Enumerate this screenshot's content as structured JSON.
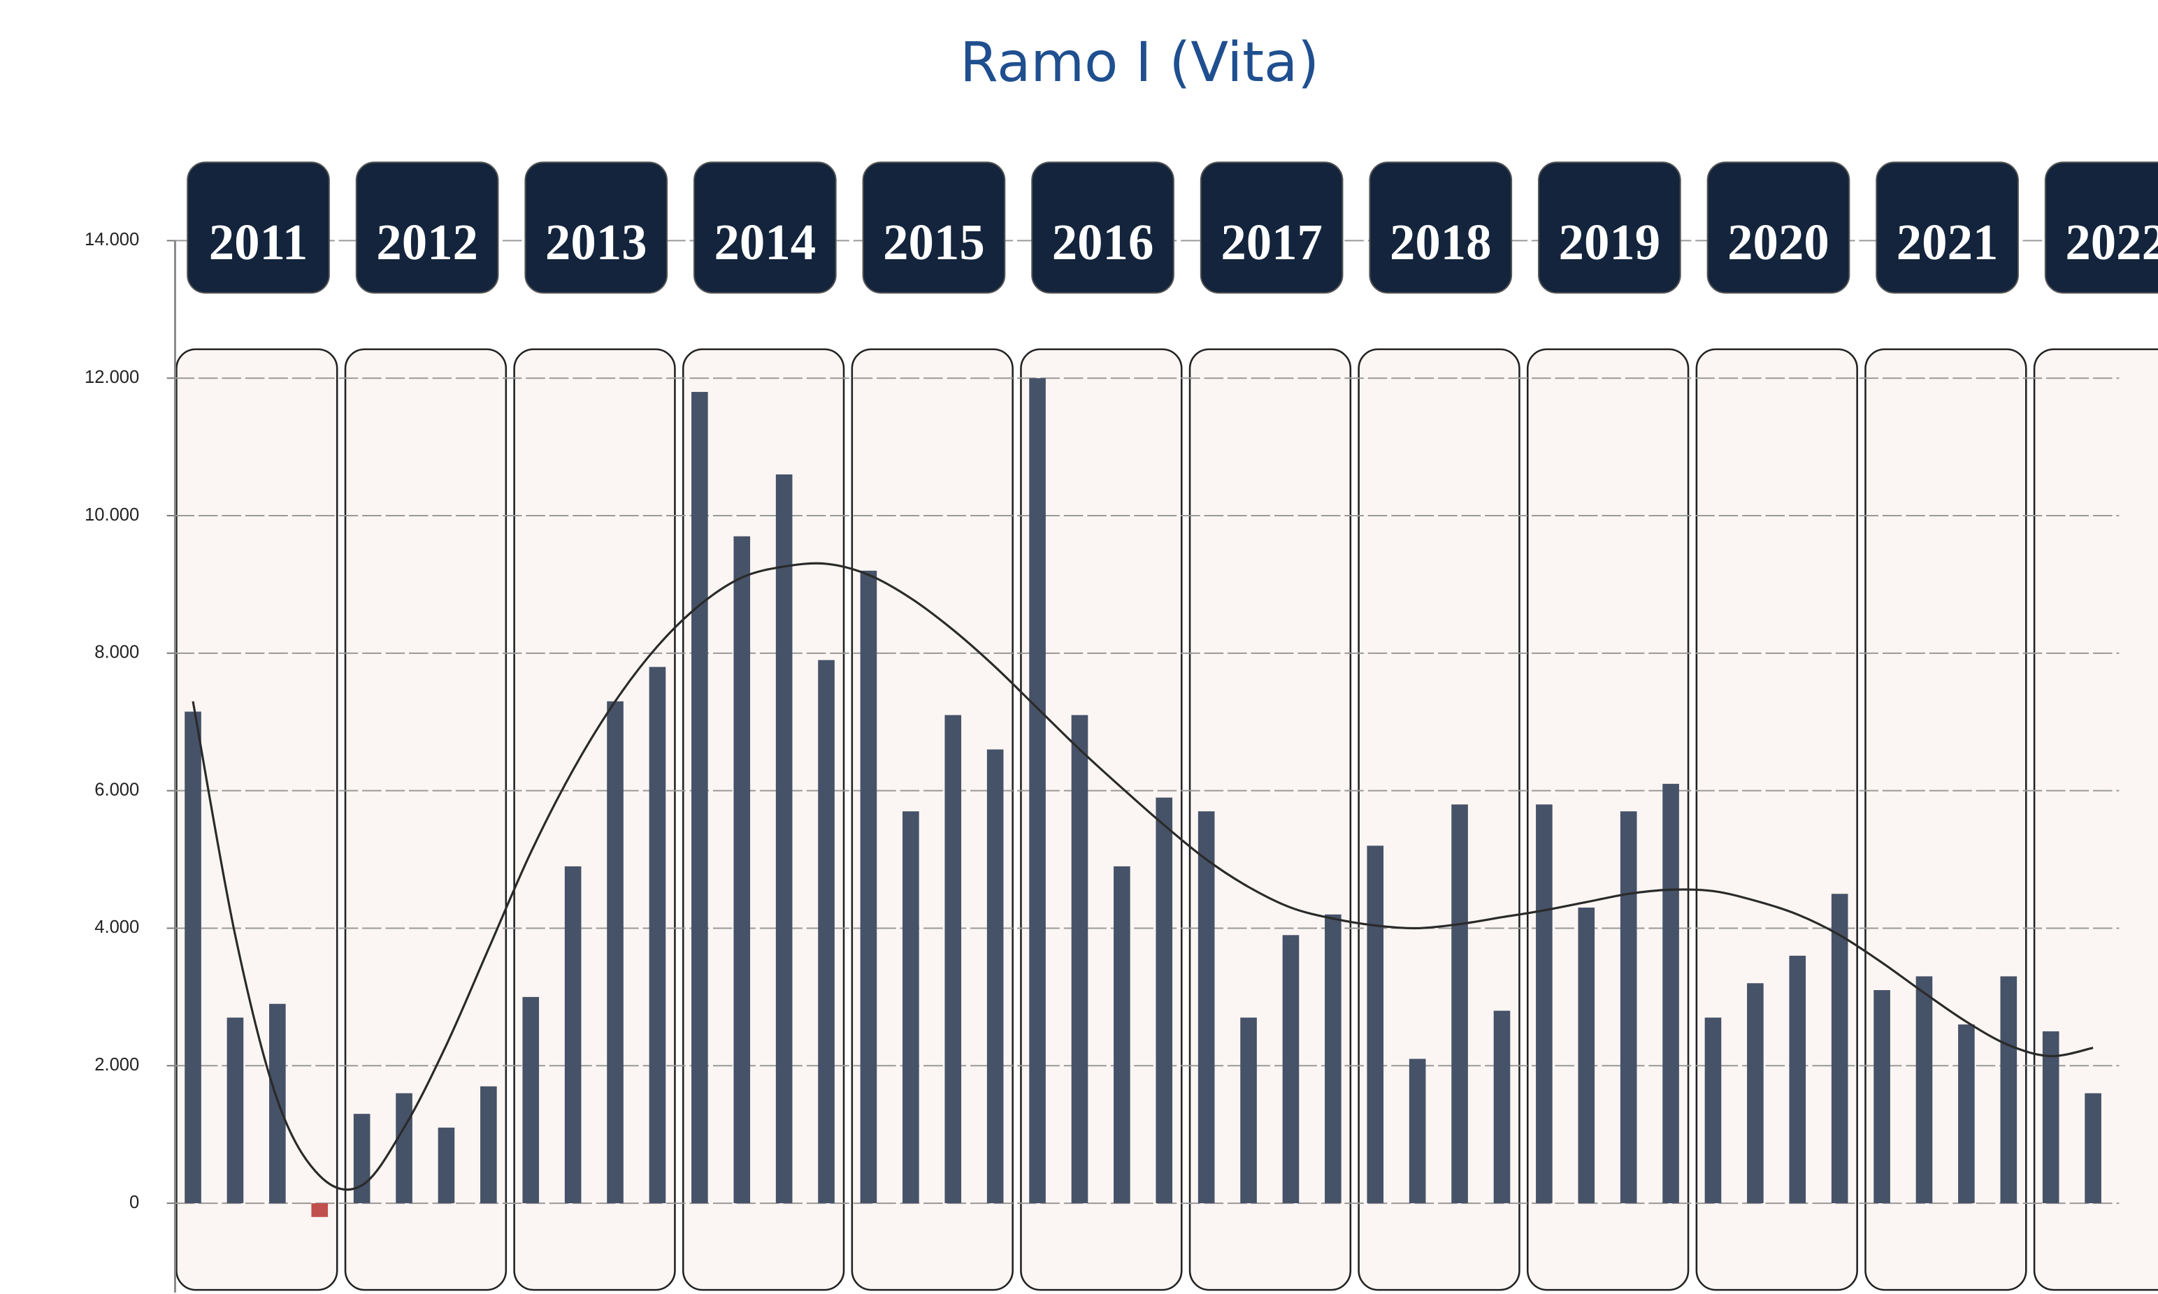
{
  "chart_data": {
    "type": "bar",
    "title": "Ramo I (Vita)",
    "years": [
      "2011",
      "2012",
      "2013",
      "2014",
      "2015",
      "2016",
      "2017",
      "2018",
      "2019",
      "2020",
      "2021",
      "2022"
    ],
    "categories": [
      null,
      null,
      null,
      null,
      null,
      null,
      null,
      null,
      null,
      null,
      null,
      null,
      null,
      null,
      null,
      null,
      null,
      null,
      null,
      null,
      null,
      null,
      null,
      null,
      null,
      null,
      null,
      null,
      null,
      null,
      null,
      null,
      null,
      null,
      null,
      null,
      null,
      null,
      null,
      null,
      null,
      null,
      null,
      null,
      null,
      null
    ],
    "series": [
      {
        "type": "bar",
        "color": "#465268",
        "negative_color": "#c0504d",
        "values": [
          7150,
          2700,
          2900,
          -200,
          1300,
          1600,
          1100,
          1700,
          3000,
          4900,
          7300,
          7800,
          11800,
          9700,
          10600,
          7900,
          9200,
          5700,
          7100,
          6600,
          12000,
          7100,
          4900,
          5900,
          5700,
          2700,
          3900,
          4200,
          5200,
          2100,
          5800,
          2800,
          5800,
          4300,
          5700,
          6100,
          2700,
          3200,
          3600,
          4500,
          3100,
          3300,
          2600,
          3300,
          2500,
          1600
        ]
      },
      {
        "type": "line",
        "color": "#2a2a2a",
        "values": [
          7300,
          3900,
          1500,
          400,
          260,
          1100,
          2300,
          3700,
          5100,
          6300,
          7300,
          8100,
          8700,
          9100,
          9260,
          9300,
          9140,
          8800,
          8340,
          7800,
          7200,
          6600,
          6040,
          5500,
          5000,
          4600,
          4300,
          4140,
          4040,
          4000,
          4060,
          4160,
          4260,
          4380,
          4500,
          4560,
          4540,
          4400,
          4200,
          3900,
          3500,
          3060,
          2640,
          2300,
          2140,
          2260
        ]
      }
    ],
    "ylim": [
      -1300,
      14000
    ],
    "yticks": [
      {
        "value": 14000,
        "label": "14.000"
      },
      {
        "value": 12000,
        "label": "12.000"
      },
      {
        "value": 10000,
        "label": "10.000"
      },
      {
        "value": 8000,
        "label": "8.000"
      },
      {
        "value": 6000,
        "label": "6.000"
      },
      {
        "value": 4000,
        "label": "4.000"
      },
      {
        "value": 2000,
        "label": "2.000"
      },
      0
    ],
    "grid": true
  }
}
